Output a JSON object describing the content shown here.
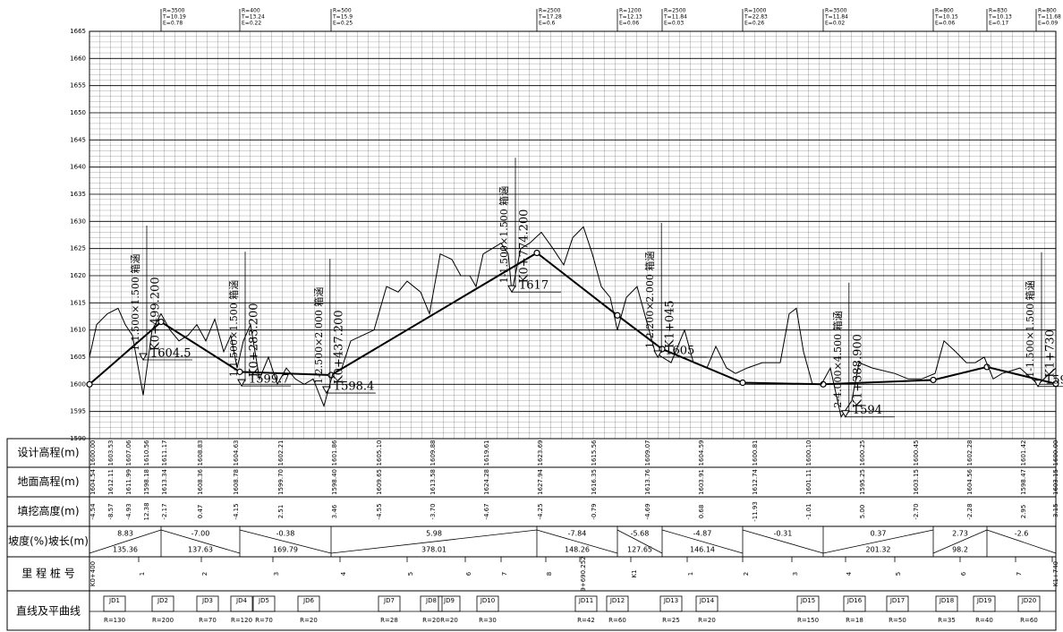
{
  "chart_data": {
    "type": "line",
    "ylim": [
      1590,
      1665
    ],
    "yticks": [
      1590,
      1595,
      1600,
      1605,
      1610,
      1615,
      1620,
      1625,
      1630,
      1635,
      1640,
      1645,
      1650,
      1655,
      1660,
      1665
    ],
    "xlim": [
      0,
      1350
    ],
    "grid": true,
    "series": [
      {
        "color": "#000",
        "width": 2,
        "x": [
          0,
          100,
          210,
          337.5,
          625,
          737.5,
          800,
          912.5,
          1025,
          1178.75,
          1253.75,
          1350
        ],
        "values": [
          1600.0,
          1611.5,
          1602.3,
          1601.7,
          1624.2,
          1612.7,
          1606.5,
          1600.3,
          1600.0,
          1600.8,
          1603.2,
          1600.1
        ]
      },
      {
        "color": "#000",
        "width": 1,
        "x": [
          0,
          10,
          25,
          40,
          50,
          60,
          75,
          87.5,
          100,
          112.5,
          125,
          137.5,
          150,
          162.5,
          175,
          187.5,
          197.5,
          206.25,
          215,
          225,
          237.5,
          250,
          262.5,
          275,
          287.5,
          300,
          312.5,
          327.5,
          340,
          352.5,
          365,
          381.25,
          397.5,
          415,
          431.25,
          443.75,
          462.5,
          475,
          490,
          506.25,
          518.75,
          531.25,
          540,
          550,
          562.5,
          575,
          585,
          590,
          602.5,
          615,
          631.25,
          647.5,
          662.5,
          675,
          690,
          702.5,
          715,
          727.5,
          737.5,
          750,
          765,
          777.5,
          790,
          800,
          812.5,
          831.25,
          843.75,
          862.5,
          875,
          890,
          902.5,
          918.75,
          940,
          965,
          977.5,
          987.5,
          997.5,
          1010,
          1022.5,
          1035,
          1050,
          1065,
          1075,
          1093.75,
          1125,
          1143.75,
          1162.5,
          1181.25,
          1193.75,
          1210,
          1225,
          1237.5,
          1250,
          1262.5,
          1275,
          1300,
          1325,
          1350
        ],
        "values": [
          1605,
          1611,
          1613,
          1614,
          1611,
          1609,
          1598,
          1610,
          1613,
          1610,
          1608,
          1609,
          1611,
          1608,
          1612,
          1606,
          1609,
          1603,
          1608,
          1611,
          1601,
          1605,
          1600,
          1603,
          1601,
          1600,
          1601,
          1596,
          1602,
          1603,
          1608,
          1609,
          1610,
          1618,
          1617,
          1619,
          1617,
          1613,
          1624,
          1623,
          1620,
          1620,
          1618,
          1624,
          1625,
          1626,
          1624,
          1617,
          1625,
          1626,
          1628,
          1625,
          1622,
          1627,
          1629,
          1624,
          1618,
          1616,
          1610,
          1616,
          1618,
          1612,
          1606,
          1605,
          1604,
          1610,
          1604,
          1603,
          1607,
          1603,
          1602,
          1603,
          1604,
          1604,
          1613,
          1614,
          1606,
          1600,
          1600,
          1603,
          1594,
          1597,
          1604,
          1603,
          1602,
          1601,
          1601,
          1602,
          1608,
          1606,
          1604,
          1604,
          1605,
          1601,
          1602,
          1603,
          1600,
          1603
        ]
      }
    ],
    "structures": [
      {
        "x": 75,
        "name": "1-1.500×1.500 箱涵",
        "station": "K0+499.200",
        "elevation": 1604.5
      },
      {
        "x": 212.5,
        "name": "1-1.500×1.500 箱涵",
        "station": "K0+283.200",
        "elevation": 1599.7
      },
      {
        "x": 331,
        "name": "1-2.500×2.000 箱涵",
        "station": "K0+437.200",
        "elevation": 1598.4
      },
      {
        "x": 590,
        "name": "1-1.500×1.500 箱涵",
        "station": "K0+774.200",
        "elevation": 1617
      },
      {
        "x": 794,
        "name": "1-2.200×2.000 箱涵",
        "station": "K1+045",
        "elevation": 1605
      },
      {
        "x": 1056,
        "name": "2-4.000×4.500 箱涵",
        "station": "K1+388.900",
        "elevation": 1594
      },
      {
        "x": 1325,
        "name": "1-1.500×1.500 箱涵",
        "station": "K1+730",
        "elevation": 1599.6
      }
    ],
    "vertical_curves": [
      {
        "x": 100,
        "lines": [
          "R=3500",
          "T=10.19",
          "E=0.78"
        ]
      },
      {
        "x": 210,
        "lines": [
          "R=400",
          "T=13.24",
          "E=0.22"
        ]
      },
      {
        "x": 337.5,
        "lines": [
          "R=500",
          "T=15.9",
          "E=0.25"
        ]
      },
      {
        "x": 625,
        "lines": [
          "R=2500",
          "T=17.28",
          "E=0.6"
        ]
      },
      {
        "x": 737.5,
        "lines": [
          "R=1200",
          "T=12.13",
          "E=0.06"
        ]
      },
      {
        "x": 800,
        "lines": [
          "R=2500",
          "T=11.84",
          "E=0.03"
        ]
      },
      {
        "x": 912.5,
        "lines": [
          "R=1000",
          "T=22.83",
          "E=0.26"
        ]
      },
      {
        "x": 1025,
        "lines": [
          "R=3500",
          "T=11.84",
          "E=0.02"
        ]
      },
      {
        "x": 1178.75,
        "lines": [
          "R=800",
          "T=10.15",
          "E=0.06"
        ]
      },
      {
        "x": 1253.75,
        "lines": [
          "R=830",
          "T=10.13",
          "E=0.17"
        ]
      },
      {
        "x": 1350,
        "lines": [
          "R=800",
          "T=11.68",
          "E=0.09"
        ]
      }
    ]
  },
  "table": {
    "row_labels": [
      "设计高程(m)",
      "地面高程(m)",
      "填挖高度(m)",
      "坡度(%)坡长(m)",
      "里 程 桩 号",
      "直线及平曲线"
    ],
    "design": [
      {
        "x": 0,
        "text": "1600.00"
      },
      {
        "x": 25,
        "text": "1603.53"
      },
      {
        "x": 50,
        "text": "1607.06"
      },
      {
        "x": 75,
        "text": "1610.56"
      },
      {
        "x": 100,
        "text": "1611.17"
      },
      {
        "x": 150,
        "text": "1608.83"
      },
      {
        "x": 200,
        "text": "1604.63"
      },
      {
        "x": 262.5,
        "text": "1602.21"
      },
      {
        "x": 337.5,
        "text": "1601.86"
      },
      {
        "x": 400,
        "text": "1605.10"
      },
      {
        "x": 475,
        "text": "1609.88"
      },
      {
        "x": 550,
        "text": "1619.61"
      },
      {
        "x": 625,
        "text": "1623.69"
      },
      {
        "x": 700,
        "text": "1615.56"
      },
      {
        "x": 775,
        "text": "1609.07"
      },
      {
        "x": 850,
        "text": "1604.59"
      },
      {
        "x": 925,
        "text": "1600.81"
      },
      {
        "x": 1000,
        "text": "1600.10"
      },
      {
        "x": 1075,
        "text": "1600.25"
      },
      {
        "x": 1150,
        "text": "1600.45"
      },
      {
        "x": 1225,
        "text": "1602.28"
      },
      {
        "x": 1300,
        "text": "1601.42"
      },
      {
        "x": 1345,
        "text": "1600.00"
      }
    ],
    "ground": [
      {
        "x": 0,
        "text": "1604.54"
      },
      {
        "x": 25,
        "text": "1612.11"
      },
      {
        "x": 50,
        "text": "1611.99"
      },
      {
        "x": 75,
        "text": "1598.18"
      },
      {
        "x": 100,
        "text": "1613.34"
      },
      {
        "x": 150,
        "text": "1608.36"
      },
      {
        "x": 200,
        "text": "1608.78"
      },
      {
        "x": 262.5,
        "text": "1599.70"
      },
      {
        "x": 337.5,
        "text": "1598.40"
      },
      {
        "x": 400,
        "text": "1609.65"
      },
      {
        "x": 475,
        "text": "1613.58"
      },
      {
        "x": 550,
        "text": "1624.28"
      },
      {
        "x": 625,
        "text": "1627.94"
      },
      {
        "x": 700,
        "text": "1616.35"
      },
      {
        "x": 775,
        "text": "1613.76"
      },
      {
        "x": 850,
        "text": "1603.91"
      },
      {
        "x": 925,
        "text": "1612.74"
      },
      {
        "x": 1000,
        "text": "1601.11"
      },
      {
        "x": 1075,
        "text": "1595.25"
      },
      {
        "x": 1150,
        "text": "1603.15"
      },
      {
        "x": 1225,
        "text": "1604.56"
      },
      {
        "x": 1300,
        "text": "1598.47"
      },
      {
        "x": 1345,
        "text": "1603.15"
      }
    ],
    "fill": [
      {
        "x": 0,
        "text": "-4.54"
      },
      {
        "x": 25,
        "text": "-8.57"
      },
      {
        "x": 50,
        "text": "-4.93"
      },
      {
        "x": 75,
        "text": "12.38"
      },
      {
        "x": 100,
        "text": "-2.17"
      },
      {
        "x": 150,
        "text": "0.47"
      },
      {
        "x": 200,
        "text": "-4.15"
      },
      {
        "x": 262.5,
        "text": "2.51"
      },
      {
        "x": 337.5,
        "text": "3.46"
      },
      {
        "x": 400,
        "text": "-4.55"
      },
      {
        "x": 475,
        "text": "-3.70"
      },
      {
        "x": 550,
        "text": "-4.67"
      },
      {
        "x": 625,
        "text": "-4.25"
      },
      {
        "x": 700,
        "text": "-0.79"
      },
      {
        "x": 775,
        "text": "-4.69"
      },
      {
        "x": 850,
        "text": "0.68"
      },
      {
        "x": 925,
        "text": "-11.93"
      },
      {
        "x": 1000,
        "text": "-1.01"
      },
      {
        "x": 1075,
        "text": "5.00"
      },
      {
        "x": 1150,
        "text": "-2.70"
      },
      {
        "x": 1225,
        "text": "-2.28"
      },
      {
        "x": 1300,
        "text": "2.95"
      },
      {
        "x": 1345,
        "text": "-3.15"
      }
    ],
    "grades": [
      "8.83",
      "-7.00",
      "-0.38",
      "5.98",
      "-7.84",
      "-5.68",
      "-4.87",
      "-0.31",
      "0.37",
      "2.73",
      "-2.6"
    ],
    "lengths": [
      "135.36",
      "137.63",
      "169.79",
      "378.01",
      "148.26",
      "127.65",
      "146.14",
      null,
      "201.32",
      "98.2",
      null
    ],
    "mileage": [
      {
        "x": 0,
        "text": "K0+400"
      },
      {
        "x": 68.75,
        "text": "1"
      },
      {
        "x": 156.25,
        "text": "2"
      },
      {
        "x": 256.25,
        "text": "3"
      },
      {
        "x": 350,
        "text": "4"
      },
      {
        "x": 443.75,
        "text": "5"
      },
      {
        "x": 525,
        "text": "6"
      },
      {
        "x": 575,
        "text": "7"
      },
      {
        "x": 637.5,
        "text": "8"
      },
      {
        "x": 685,
        "text": "9+690.252"
      },
      {
        "x": 756.25,
        "text": "K1"
      },
      {
        "x": 835,
        "text": "1"
      },
      {
        "x": 912.5,
        "text": "2"
      },
      {
        "x": 981.25,
        "text": "3"
      },
      {
        "x": 1056.25,
        "text": "4"
      },
      {
        "x": 1125,
        "text": "5"
      },
      {
        "x": 1216.25,
        "text": "6"
      },
      {
        "x": 1293.75,
        "text": "7"
      },
      {
        "x": 1345,
        "text": "K1+740"
      }
    ],
    "curves": [
      {
        "x": 35,
        "jd": "JD1",
        "r": "R=130"
      },
      {
        "x": 102.5,
        "jd": "JD2",
        "r": "R=200"
      },
      {
        "x": 165,
        "jd": "JD3",
        "r": "R=70"
      },
      {
        "x": 212.5,
        "jd": "JD4",
        "r": "R=120"
      },
      {
        "x": 243.75,
        "jd": "JD5",
        "r": "R=70"
      },
      {
        "x": 306.25,
        "jd": "JD6",
        "r": "R=20"
      },
      {
        "x": 418.75,
        "jd": "JD7",
        "r": "R=28"
      },
      {
        "x": 477.5,
        "jd": "JD8",
        "r": "R=20"
      },
      {
        "x": 502.5,
        "jd": "JD9",
        "r": "R=20"
      },
      {
        "x": 556.25,
        "jd": "JD10",
        "r": "R=30"
      },
      {
        "x": 693.75,
        "jd": "JD11",
        "r": "R=42"
      },
      {
        "x": 737.5,
        "jd": "JD12",
        "r": "R=60"
      },
      {
        "x": 812.5,
        "jd": "JD13",
        "r": "R=25"
      },
      {
        "x": 862.5,
        "jd": "JD14",
        "r": "R=20"
      },
      {
        "x": 1003.75,
        "jd": "JD15",
        "r": "R=150"
      },
      {
        "x": 1068.75,
        "jd": "JD16",
        "r": "R=18"
      },
      {
        "x": 1128.75,
        "jd": "JD17",
        "r": "R=50"
      },
      {
        "x": 1197.5,
        "jd": "JD18",
        "r": "R=35"
      },
      {
        "x": 1250,
        "jd": "JD19",
        "r": "R=40"
      },
      {
        "x": 1312.5,
        "jd": "JD20",
        "r": "R=60"
      }
    ]
  }
}
